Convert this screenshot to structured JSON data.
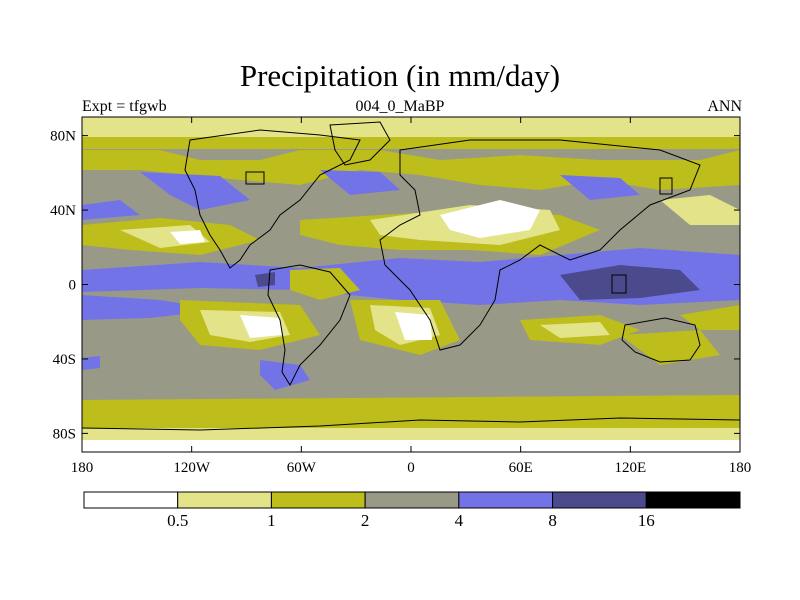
{
  "title": "Precipitation (in mm/day)",
  "left_subtitle": "Expt = tfgwb",
  "center_subtitle": "004_0_MaBP",
  "right_subtitle": "ANN",
  "lat_ticks": [
    "80N",
    "40N",
    "0",
    "40S",
    "80S"
  ],
  "lon_ticks": [
    "180",
    "120W",
    "60W",
    "0",
    "60E",
    "120E",
    "180"
  ],
  "colorbar": {
    "levels": [
      "0.5",
      "1",
      "2",
      "4",
      "8",
      "16"
    ],
    "colors": [
      "#ffffff",
      "#e3e38a",
      "#bdbd1c",
      "#999988",
      "#7373e8",
      "#4a4a8c",
      "#000000"
    ]
  }
}
